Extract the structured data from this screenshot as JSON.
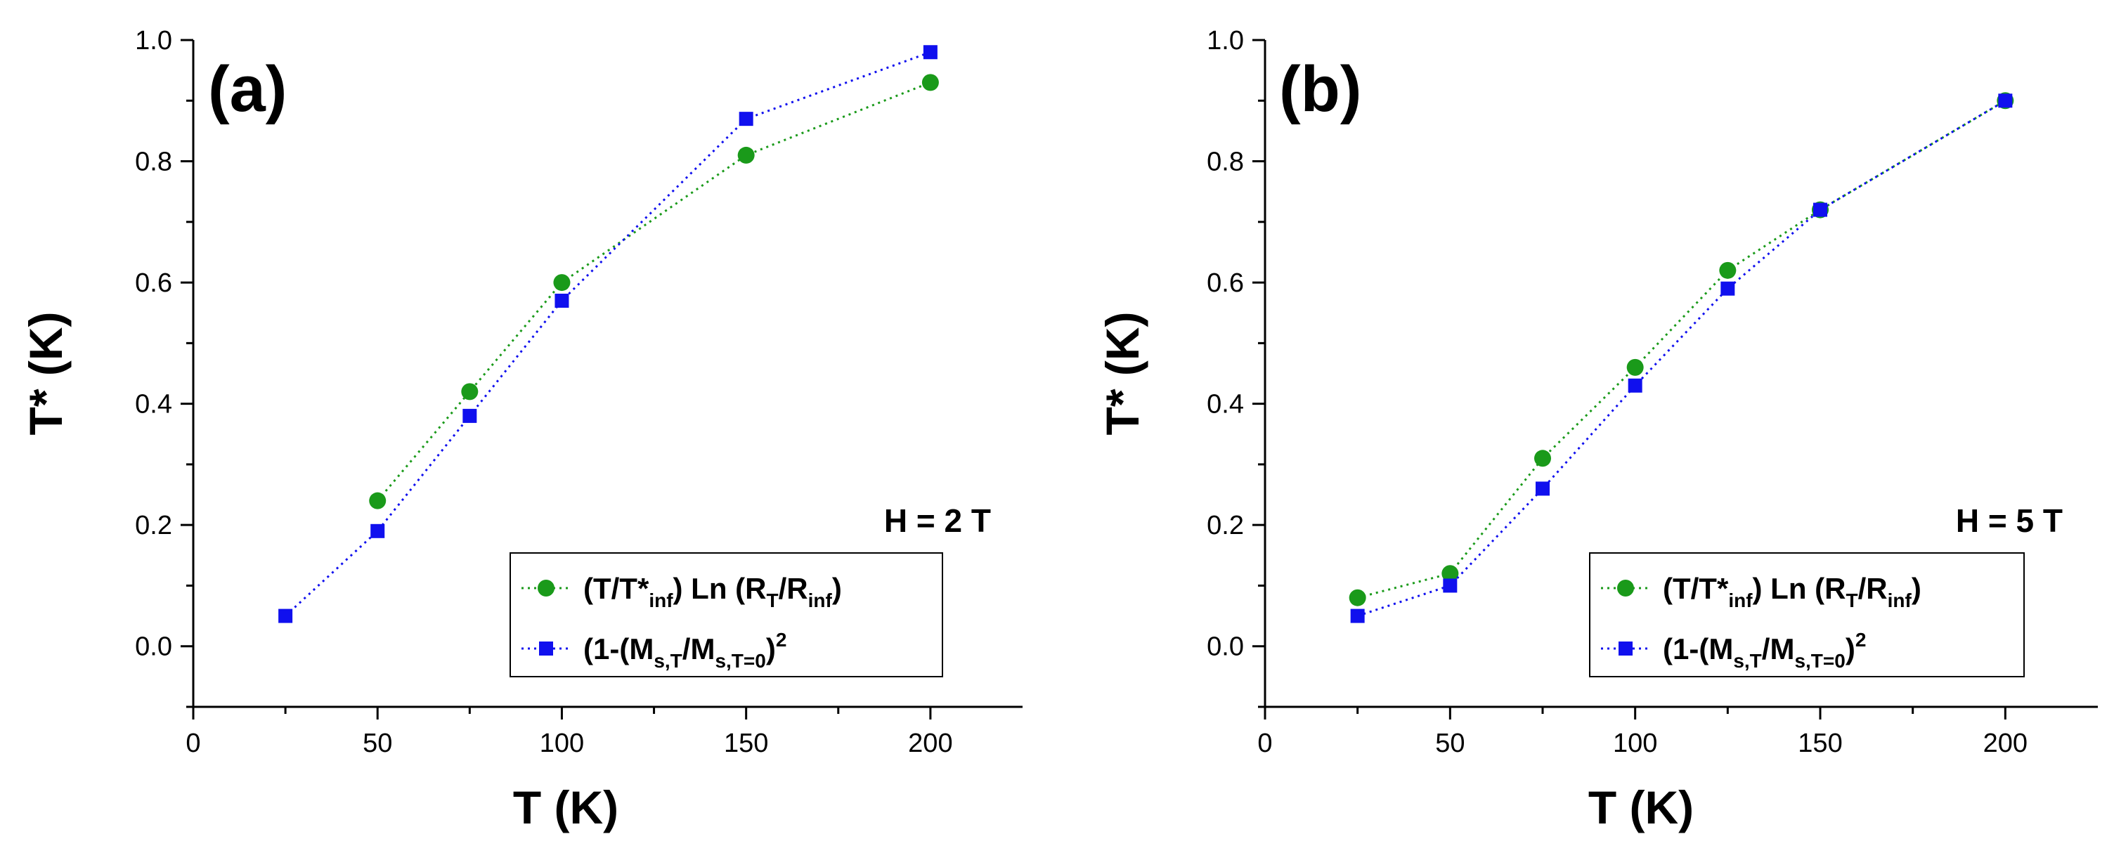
{
  "chart_data": [
    {
      "type": "line",
      "panel_label": "(a)",
      "annotation": "H = 2 T",
      "xlabel": "T (K)",
      "ylabel": "T* (K)",
      "xlim": [
        0,
        225
      ],
      "ylim": [
        -0.1,
        1.0
      ],
      "xticks": [
        0,
        50,
        100,
        150,
        200
      ],
      "yticks": [
        0.0,
        0.2,
        0.4,
        0.6,
        0.8,
        1.0
      ],
      "xtick_labels": [
        "0",
        "50",
        "100",
        "150",
        "200"
      ],
      "ytick_labels": [
        "0.0",
        "0.2",
        "0.4",
        "0.6",
        "0.8",
        "1.0"
      ],
      "legend_position": "bottom-right",
      "series": [
        {
          "name": "(T/T*inf) Ln (RT/Rinf)",
          "legend": {
            "main1": "(T/T*",
            "sub1": "inf",
            "main2": ") Ln (R",
            "sub2": "T",
            "main3": "/R",
            "sub3": "inf",
            "main4": ")"
          },
          "marker": "circle",
          "color": "#1a9a1a",
          "x": [
            50,
            75,
            100,
            150,
            200
          ],
          "y": [
            0.24,
            0.42,
            0.6,
            0.81,
            0.93
          ]
        },
        {
          "name": "(1-(Ms,T/Ms,T=0)^2",
          "legend": {
            "main1": "(1-(M",
            "sub1": "s,T",
            "main2": "/M",
            "sub2": "s,T=0",
            "main3": ")",
            "sup": "2"
          },
          "marker": "square",
          "color": "#1010ee",
          "x": [
            25,
            50,
            75,
            100,
            150,
            200
          ],
          "y": [
            0.05,
            0.19,
            0.38,
            0.57,
            0.87,
            0.98
          ]
        }
      ]
    },
    {
      "type": "line",
      "panel_label": "(b)",
      "annotation": "H = 5 T",
      "xlabel": "T (K)",
      "ylabel": "T* (K)",
      "xlim": [
        0,
        225
      ],
      "ylim": [
        -0.1,
        1.0
      ],
      "xticks": [
        0,
        50,
        100,
        150,
        200
      ],
      "yticks": [
        0.0,
        0.2,
        0.4,
        0.6,
        0.8,
        1.0
      ],
      "xtick_labels": [
        "0",
        "50",
        "100",
        "150",
        "200"
      ],
      "ytick_labels": [
        "0.0",
        "0.2",
        "0.4",
        "0.6",
        "0.8",
        "1.0"
      ],
      "legend_position": "bottom-right",
      "series": [
        {
          "name": "(T/T*inf) Ln (RT/Rinf)",
          "legend": {
            "main1": "(T/T*",
            "sub1": "inf",
            "main2": ") Ln (R",
            "sub2": "T",
            "main3": "/R",
            "sub3": "inf",
            "main4": ")"
          },
          "marker": "circle",
          "color": "#1a9a1a",
          "x": [
            25,
            50,
            75,
            100,
            125,
            150,
            200
          ],
          "y": [
            0.08,
            0.12,
            0.31,
            0.46,
            0.62,
            0.72,
            0.9
          ]
        },
        {
          "name": "(1-(Ms,T/Ms,T=0)^2",
          "legend": {
            "main1": "(1-(M",
            "sub1": "s,T",
            "main2": "/M",
            "sub2": "s,T=0",
            "main3": ")",
            "sup": "2"
          },
          "marker": "square",
          "color": "#1010ee",
          "x": [
            25,
            50,
            75,
            100,
            125,
            150,
            200
          ],
          "y": [
            0.05,
            0.1,
            0.26,
            0.43,
            0.59,
            0.72,
            0.9
          ]
        }
      ]
    }
  ]
}
